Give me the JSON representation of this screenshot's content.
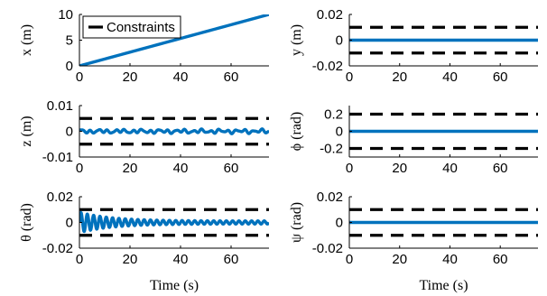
{
  "chart_data": [
    {
      "type": "line",
      "xlabel": "",
      "ylabel": "x (m)",
      "xlim": [
        0,
        75
      ],
      "ylim": [
        0,
        10
      ],
      "xticks": [
        0,
        20,
        40,
        60
      ],
      "yticks": [
        "0",
        "5",
        "10"
      ],
      "ytick_values": [
        0,
        5,
        10
      ],
      "signal": {
        "kind": "ramp",
        "start": 0,
        "end": 10
      },
      "constraints": [],
      "legend": {
        "label": "Constraints",
        "placement": "top-left"
      }
    },
    {
      "type": "line",
      "xlabel": "",
      "ylabel": "y (m)",
      "xlim": [
        0,
        75
      ],
      "ylim": [
        -0.02,
        0.02
      ],
      "xticks": [
        0,
        20,
        40,
        60
      ],
      "yticks": [
        "-0.02",
        "0",
        "0.02"
      ],
      "ytick_values": [
        -0.02,
        0,
        0.02
      ],
      "signal": {
        "kind": "constant",
        "value": 0
      },
      "constraints": [
        0.01,
        -0.01
      ]
    },
    {
      "type": "line",
      "xlabel": "",
      "ylabel": "z (m)",
      "xlim": [
        0,
        75
      ],
      "ylim": [
        -0.01,
        0.01
      ],
      "xticks": [
        0,
        20,
        40,
        60
      ],
      "yticks": [
        "-0.01",
        "0",
        "0.01"
      ],
      "ytick_values": [
        -0.01,
        0,
        0.01
      ],
      "signal": {
        "kind": "irregular",
        "amplitude": 0.0009
      },
      "constraints": [
        0.005,
        -0.005
      ]
    },
    {
      "type": "line",
      "xlabel": "",
      "ylabel": "ϕ (rad)",
      "xlim": [
        0,
        75
      ],
      "ylim": [
        -0.3,
        0.3
      ],
      "xticks": [
        0,
        20,
        40,
        60
      ],
      "yticks": [
        "-0.2",
        "0",
        "0.2"
      ],
      "ytick_values": [
        -0.2,
        0,
        0.2
      ],
      "signal": {
        "kind": "constant",
        "value": 0
      },
      "constraints": [
        0.2,
        -0.2
      ]
    },
    {
      "type": "line",
      "xlabel": "Time (s)",
      "ylabel": "θ (rad)",
      "xlim": [
        0,
        75
      ],
      "ylim": [
        -0.02,
        0.02
      ],
      "xticks": [
        0,
        20,
        40,
        60
      ],
      "yticks": [
        "-0.02",
        "0",
        "0.02"
      ],
      "ytick_values": [
        -0.02,
        0,
        0.02
      ],
      "signal": {
        "kind": "decaying",
        "amplitude": 0.008,
        "floor": 0.0012,
        "period": 2.5
      },
      "constraints": [
        0.01,
        -0.01
      ]
    },
    {
      "type": "line",
      "xlabel": "Time (s)",
      "ylabel": "ψ (rad)",
      "xlim": [
        0,
        75
      ],
      "ylim": [
        -0.02,
        0.02
      ],
      "xticks": [
        0,
        20,
        40,
        60
      ],
      "yticks": [
        "-0.02",
        "0",
        "0.02"
      ],
      "ytick_values": [
        -0.02,
        0,
        0.02
      ],
      "signal": {
        "kind": "constant",
        "value": 0
      },
      "constraints": [
        0.01,
        -0.01
      ]
    }
  ],
  "colors": {
    "signal": "#0072BD",
    "constraint": "#000000",
    "axis": "#000000"
  }
}
